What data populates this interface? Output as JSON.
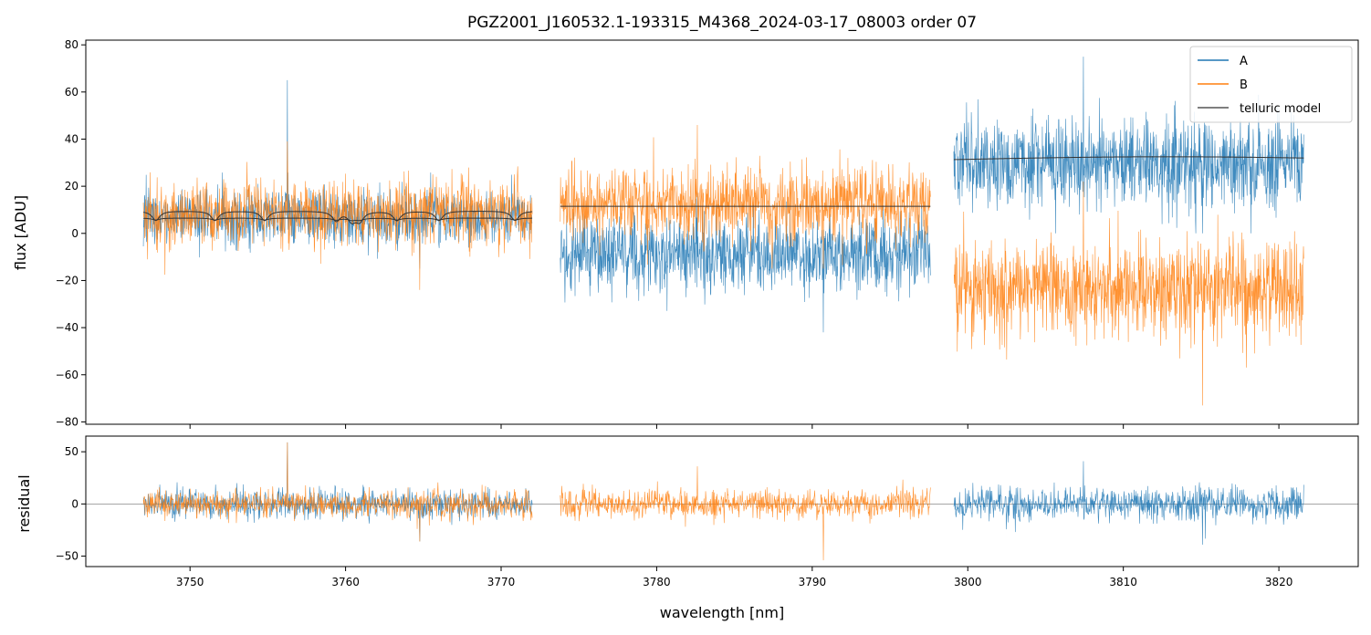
{
  "chart_data": {
    "type": "line",
    "title": "PGZ2001_J160532.1-193315_M4368_2024-03-17_08003  order 07",
    "xlabel": "wavelength [nm]",
    "xlim": [
      3743.3,
      3825.1
    ],
    "xticks": [
      3750,
      3760,
      3770,
      3780,
      3790,
      3800,
      3810,
      3820
    ],
    "colors": {
      "A": "#1f77b4",
      "B": "#ff7f0e",
      "telluric": "#333333"
    },
    "legend": {
      "placement": "top-right",
      "entries": [
        "A",
        "B",
        "telluric model"
      ]
    },
    "panels": {
      "top": {
        "ylabel": "flux [ADU]",
        "ylim": [
          -81,
          82
        ],
        "yticks": [
          -80,
          -60,
          -40,
          -20,
          0,
          20,
          40,
          60,
          80
        ]
      },
      "bottom": {
        "ylabel": "residual",
        "ylim": [
          -60,
          65
        ],
        "yticks": [
          -50,
          0,
          50
        ]
      }
    },
    "segments": [
      {
        "x_range": [
          3747.0,
          3772.0
        ],
        "A_flux": {
          "mean": 7,
          "noise_sd": 6,
          "min": -15,
          "max": 65
        },
        "B_flux": {
          "mean": 9,
          "noise_sd": 7,
          "min": -24,
          "max": 39
        },
        "telluric": {
          "A_level": 6.5,
          "B_level": 9.5,
          "absorption_lines_nm": [
            3747.8,
            3751.6,
            3754.8,
            3759.4,
            3760.4,
            3760.9,
            3763.3,
            3766.0,
            3770.9
          ]
        },
        "residual_series": [
          "A",
          "B"
        ],
        "residual": {
          "mean": 0,
          "noise_sd": 7,
          "min": -36,
          "max": 59
        }
      },
      {
        "x_range": [
          3773.8,
          3797.6
        ],
        "A_flux": {
          "mean": -9,
          "noise_sd": 8,
          "min": -42,
          "max": 18
        },
        "B_flux": {
          "mean": 12,
          "noise_sd": 8,
          "min": -15,
          "max": 46
        },
        "telluric": {
          "level": 11.5
        },
        "residual_series": [
          "B"
        ],
        "residual": {
          "mean": 0,
          "noise_sd": 7,
          "min": -54,
          "max": 36
        }
      },
      {
        "x_range": [
          3799.1,
          3821.6
        ],
        "A_flux": {
          "mean": 30,
          "noise_sd": 10,
          "min": 0,
          "max": 75
        },
        "B_flux": {
          "mean": -23,
          "noise_sd": 10,
          "min": -73,
          "max": 22
        },
        "telluric": {
          "start": 31.3,
          "peak": 32.4,
          "end": 31.9
        },
        "residual_series": [
          "A"
        ],
        "residual": {
          "mean": 0,
          "noise_sd": 8,
          "min": -39,
          "max": 41
        }
      }
    ]
  }
}
